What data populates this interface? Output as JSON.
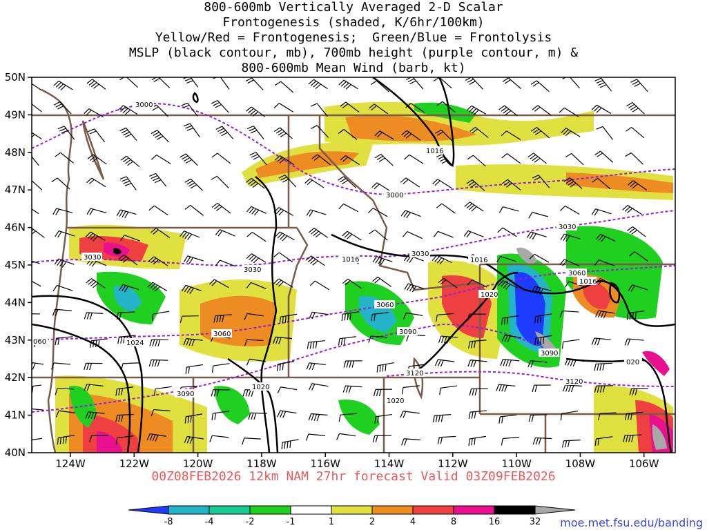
{
  "title": [
    "800-600mb Vertically Averaged 2-D Scalar",
    "Frontogenesis (shaded, K/6hr/100km)",
    "Yellow/Red = Frontogenesis;  Green/Blue = Frontolysis",
    "MSLP (black contour, mb), 700mb height (purple contour, m) &",
    "800-600mb Mean Wind (barb, kt)"
  ],
  "footer": "00Z08FEB2026 12km NAM 27hr forecast Valid 03Z09FEB2026",
  "credit": "moe.met.fsu.edu/banding",
  "axes": {
    "lat_labels": [
      "50N",
      "49N",
      "48N",
      "47N",
      "46N",
      "45N",
      "44N",
      "43N",
      "42N",
      "41N",
      "40N"
    ],
    "lon_labels": [
      "124W",
      "122W",
      "120W",
      "118W",
      "116W",
      "114W",
      "112W",
      "110W",
      "108W",
      "106W"
    ]
  },
  "colorbar": {
    "labels": [
      "-8",
      "-4",
      "-2",
      "-1",
      "1",
      "2",
      "4",
      "8",
      "16",
      "32"
    ],
    "colors": [
      "#1e3cff",
      "#24b4c8",
      "#18c890",
      "#20d020",
      "#ffffff",
      "#e0e040",
      "#ee8c24",
      "#ee4040",
      "#e8108c",
      "#000000",
      "#a8a8a8"
    ]
  },
  "contour_labels": {
    "height": [
      "3000",
      "3000",
      "3030",
      "3030",
      "3030",
      "3030",
      "3060",
      "3060",
      "3060",
      "3090",
      "3090",
      "3090",
      "3120",
      "3120",
      "060"
    ],
    "mslp": [
      "1016",
      "1016",
      "1016",
      "1016",
      "1020",
      "1020",
      "1020",
      "1024",
      "020"
    ]
  },
  "colors": {
    "mslp": "#000000",
    "height": "#9a1adc",
    "borders": "#7a5a48",
    "footer": "#e85a5a",
    "credit": "#3a48d8"
  }
}
